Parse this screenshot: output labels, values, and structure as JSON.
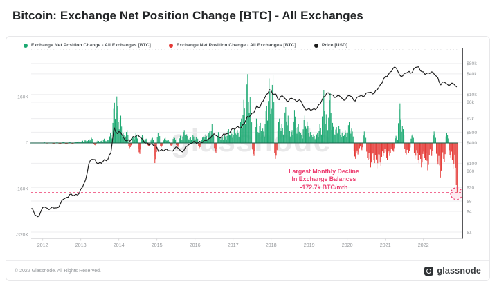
{
  "page": {
    "title": "Bitcoin: Exchange Net Position Change [BTC] - All Exchanges"
  },
  "colors": {
    "positive_green": "#1ca972",
    "negative_red": "#e53935",
    "price_black": "#1a1a1a",
    "annotation_pink": "#ed3b6f",
    "axis_text_gray": "#95989b",
    "grid_gray": "#ededef"
  },
  "legend": {
    "items": [
      {
        "label": "Exchange Net Position Change - All Exchanges [BTC]",
        "color": "#1ca972"
      },
      {
        "label": "Exchange Net Position Change - All Exchanges [BTC]",
        "color": "#e53935"
      },
      {
        "label": "Price [USD]",
        "color": "#1a1a1a"
      }
    ]
  },
  "watermark": {
    "text": "glassnode"
  },
  "annotation": {
    "line1": "Largest Monthly Decline",
    "line2": "In Exchange Balances",
    "line3": "-172.7k BTC/mth",
    "threshold_kbtc": -172.7
  },
  "footer": {
    "copyright": "© 2022 Glassnode. All Rights Reserved.",
    "brand": "glassnode"
  },
  "chart_data": {
    "type": "combo",
    "title": "Bitcoin: Exchange Net Position Change [BTC] - All Exchanges",
    "interval": "monthly",
    "start_month": "2011-09",
    "end_month": "2022-11",
    "x_axis": {
      "ticks": [
        "2012",
        "2013",
        "2014",
        "2015",
        "2016",
        "2017",
        "2018",
        "2019",
        "2020",
        "2021",
        "2022"
      ]
    },
    "left_axis": {
      "unit": "BTC (thousands)",
      "scale": "linear",
      "ticks": [
        {
          "label": "160K",
          "value": 160
        },
        {
          "label": "0",
          "value": 0
        },
        {
          "label": "-160K",
          "value": -160
        },
        {
          "label": "-320K",
          "value": -320
        }
      ]
    },
    "right_axis": {
      "unit": "USD",
      "scale": "log",
      "ticks": [
        {
          "label": "$80k",
          "value": 80000
        },
        {
          "label": "$40k",
          "value": 40000
        },
        {
          "label": "$10k",
          "value": 10000
        },
        {
          "label": "$6k",
          "value": 6000
        },
        {
          "label": "$2k",
          "value": 2000
        },
        {
          "label": "$800",
          "value": 800
        },
        {
          "label": "$400",
          "value": 400
        },
        {
          "label": "$100",
          "value": 100
        },
        {
          "label": "$60",
          "value": 60
        },
        {
          "label": "$20",
          "value": 20
        },
        {
          "label": "$8",
          "value": 8
        },
        {
          "label": "$4",
          "value": 4
        },
        {
          "label": "$1",
          "value": 1
        }
      ]
    },
    "grid": "horizontal",
    "series": [
      {
        "name": "Exchange Net Position Change - All Exchanges [BTC]",
        "type": "bar",
        "axis": "left",
        "unit": "kBTC/month",
        "values_kbtc": [
          1,
          1,
          -1,
          1,
          2,
          -2,
          1,
          -3,
          2,
          -4,
          3,
          -5,
          3,
          -3,
          4,
          5,
          8,
          10,
          14,
          18,
          -8,
          9,
          8,
          15,
          12,
          35,
          140,
          162,
          95,
          35,
          45,
          -18,
          22,
          35,
          -38,
          28,
          15,
          -12,
          18,
          -70,
          40,
          -15,
          18,
          12,
          -10,
          22,
          -14,
          25,
          45,
          30,
          20,
          28,
          25,
          -18,
          22,
          30,
          40,
          65,
          -35,
          38,
          20,
          28,
          48,
          40,
          55,
          45,
          85,
          150,
          240,
          160,
          -45,
          85,
          70,
          50,
          130,
          225,
          238,
          -55,
          85,
          65,
          125,
          95,
          45,
          115,
          65,
          35,
          95,
          75,
          45,
          30,
          35,
          65,
          185,
          100,
          175,
          70,
          55,
          60,
          40,
          45,
          73,
          50,
          -55,
          -40,
          -25,
          40,
          -60,
          -85,
          -70,
          -88,
          -80,
          -45,
          -60,
          -45,
          -30,
          25,
          138,
          60,
          -40,
          -35,
          30,
          -55,
          -70,
          -85,
          -60,
          -95,
          -45,
          40,
          -75,
          -120,
          -65,
          35,
          -50,
          -90,
          -172.7
        ]
      },
      {
        "name": "Price [USD]",
        "type": "line",
        "axis": "right",
        "scale": "log",
        "values_usd": [
          5,
          3.2,
          2.8,
          4.2,
          5.4,
          4.9,
          4.9,
          5.0,
          5.1,
          6.4,
          9,
          10.2,
          12.4,
          11.2,
          12.5,
          13.4,
          20,
          33,
          95,
          130,
          128,
          97,
          100,
          130,
          128,
          200,
          1100,
          730,
          800,
          560,
          450,
          440,
          600,
          640,
          590,
          500,
          385,
          340,
          375,
          320,
          220,
          250,
          245,
          235,
          230,
          263,
          285,
          230,
          237,
          315,
          375,
          430,
          370,
          437,
          416,
          450,
          530,
          670,
          655,
          575,
          610,
          700,
          745,
          965,
          970,
          1190,
          1080,
          1350,
          2300,
          2480,
          2880,
          4700,
          4340,
          6470,
          9900,
          13900,
          10200,
          10300,
          7000,
          9240,
          7500,
          6400,
          7750,
          7000,
          6600,
          6300,
          4020,
          3740,
          3460,
          3850,
          4100,
          5320,
          8550,
          10800,
          10000,
          9600,
          8300,
          9150,
          7550,
          7200,
          9350,
          8550,
          6450,
          8650,
          9450,
          9150,
          11350,
          11650,
          10800,
          13800,
          19700,
          29000,
          33100,
          45200,
          58800,
          57700,
          37300,
          35000,
          41500,
          47100,
          43800,
          61300,
          64000,
          46200,
          38500,
          43200,
          45500,
          37700,
          31800,
          19000,
          23300,
          20000,
          19400,
          20500,
          16500
        ]
      }
    ]
  }
}
